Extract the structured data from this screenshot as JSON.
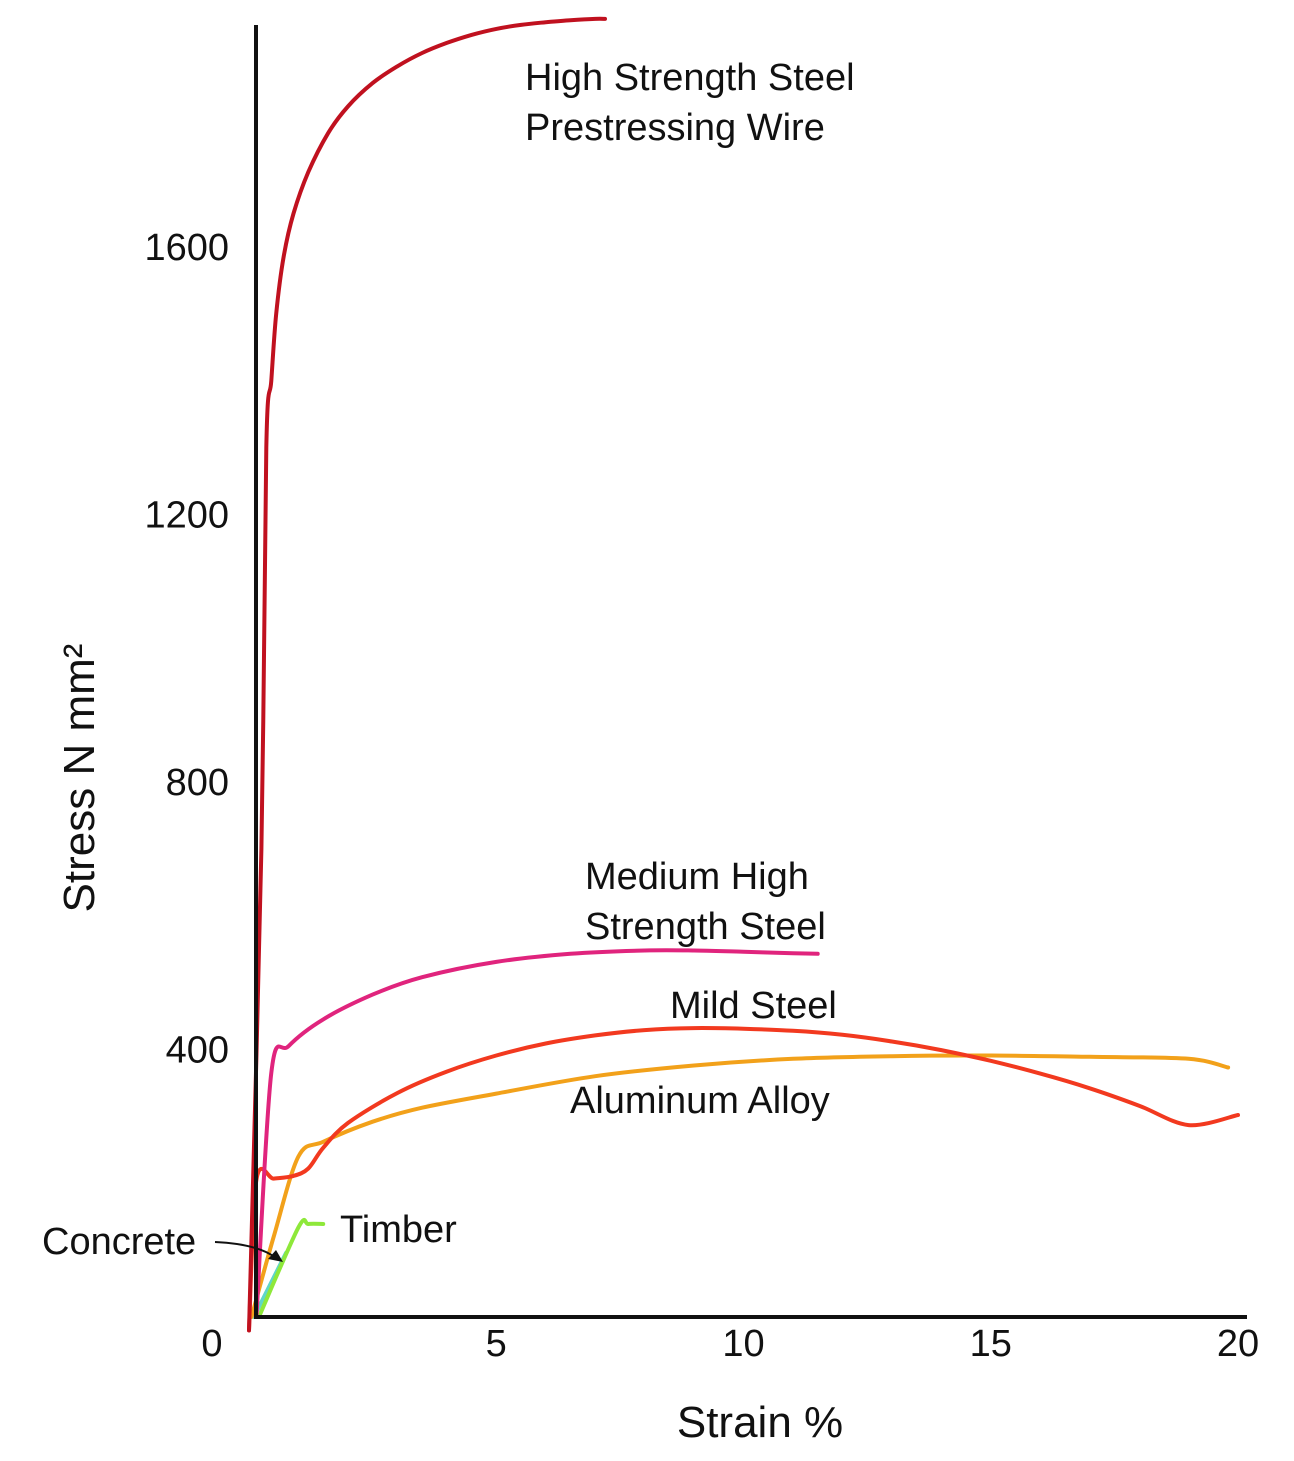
{
  "chart_data": {
    "type": "line",
    "title": "",
    "xlabel": "Strain %",
    "ylabel": "Stress  N mm²",
    "xlim": [
      0,
      20
    ],
    "ylim": [
      0,
      1950
    ],
    "x_ticks": [
      "0",
      "5",
      "10",
      "15",
      "20"
    ],
    "y_ticks": [
      "400",
      "800",
      "1200",
      "1600"
    ],
    "grid": false,
    "legend": "none (direct labels)",
    "series": [
      {
        "name": "High Strength Steel Prestressing Wire",
        "label_lines": [
          "High Strength Steel",
          "Prestressing Wire"
        ],
        "color": "#c0111f",
        "x": [
          0,
          0.25,
          0.35,
          0.45,
          0.55,
          0.7,
          0.9,
          1.2,
          1.6,
          2.0,
          2.5,
          3.0,
          3.5,
          4.0,
          4.5,
          5.0,
          5.5,
          6.0,
          6.5,
          7.0,
          7.2
        ],
        "y": [
          -20,
          700,
          1300,
          1400,
          1500,
          1585,
          1650,
          1712,
          1770,
          1810,
          1845,
          1870,
          1890,
          1905,
          1917,
          1926,
          1932,
          1936,
          1939,
          1941,
          1941
        ]
      },
      {
        "name": "Medium High Strength Steel",
        "label_lines": [
          "Medium High",
          "Strength Steel"
        ],
        "color": "#e0247d",
        "x": [
          0.15,
          0.45,
          0.8,
          1.5,
          2.5,
          3.5,
          5.0,
          6.5,
          8.0,
          9.0,
          10.0,
          11.0,
          11.5
        ],
        "y": [
          0,
          365,
          405,
          445,
          482,
          508,
          531,
          543,
          548,
          548,
          546,
          544,
          543
        ]
      },
      {
        "name": "Mild Steel",
        "label_lines": [
          "Mild Steel"
        ],
        "color": "#f2391f",
        "x": [
          0,
          0.15,
          0.5,
          0.9,
          1.2,
          1.5,
          2.0,
          3.0,
          4.0,
          5.0,
          6.0,
          7.0,
          8.0,
          9.0,
          10.0,
          11.0,
          12.0,
          13.0,
          14.0,
          15.0,
          16.0,
          17.0,
          18.0,
          19.0,
          20.0
        ],
        "y": [
          -20,
          205,
          207,
          211,
          222,
          253,
          290,
          335,
          367,
          391,
          409,
          421,
          429,
          432,
          431,
          428,
          422,
          412,
          399,
          383,
          364,
          342,
          316,
          287,
          302
        ]
      },
      {
        "name": "Aluminum Alloy",
        "label_lines": [
          "Aluminum Alloy"
        ],
        "color": "#f2a11a",
        "x": [
          0.05,
          0.5,
          1.0,
          1.5,
          2.5,
          3.5,
          5.0,
          7.0,
          9.0,
          11.0,
          13.0,
          15.0,
          17.0,
          19.0,
          19.8
        ],
        "y": [
          0,
          120,
          240,
          262,
          292,
          313,
          334,
          360,
          376,
          386,
          390,
          391,
          389,
          386,
          373
        ]
      },
      {
        "name": "Timber",
        "label_lines": [
          "Timber"
        ],
        "color": "#8ee83a",
        "x": [
          0.2,
          1.0,
          1.2,
          1.5
        ],
        "y": [
          0,
          134,
          139,
          139
        ]
      },
      {
        "name": "Concrete",
        "label_lines": [
          "Concrete"
        ],
        "color": "#5fd6c9",
        "x": [
          0.1,
          0.75
        ],
        "y": [
          0,
          96
        ]
      }
    ]
  }
}
